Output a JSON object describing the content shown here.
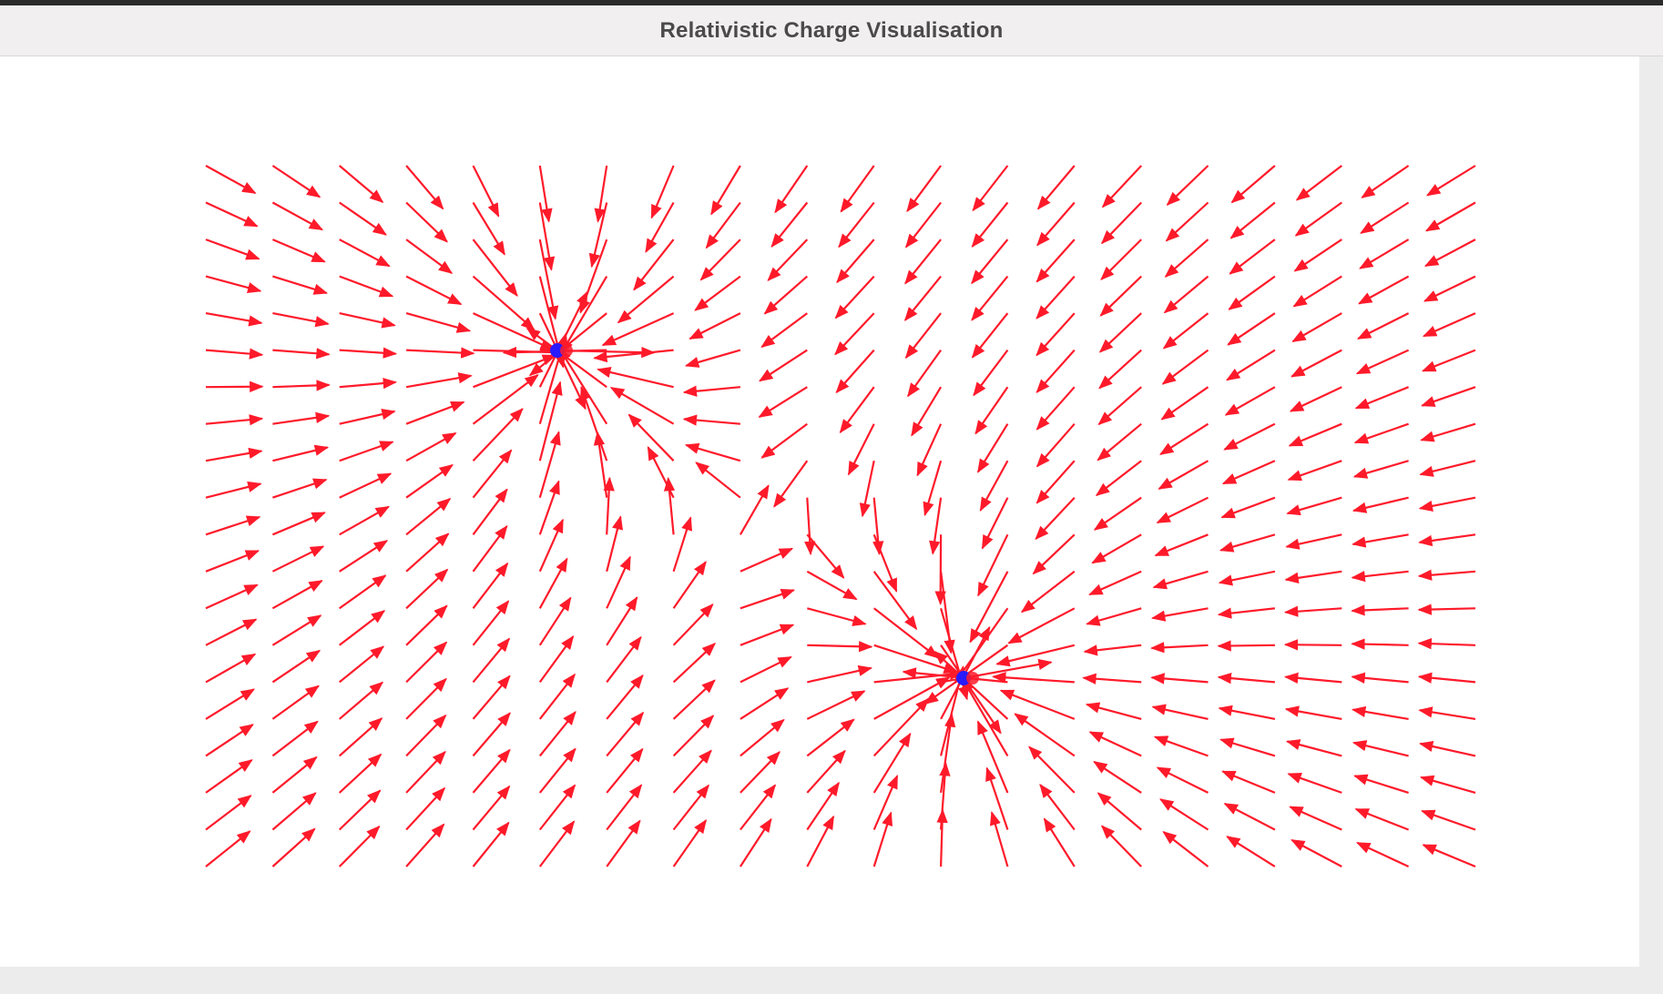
{
  "window": {
    "title": "Relativistic Charge Visualisation"
  },
  "colors": {
    "field_arrow": "#ff1a2a",
    "charge": "#2a1aff",
    "background": "#ffffff",
    "titlebar": "#f2eff0"
  },
  "scene": {
    "description_type": "vector-field",
    "charge_count": 2
  }
}
